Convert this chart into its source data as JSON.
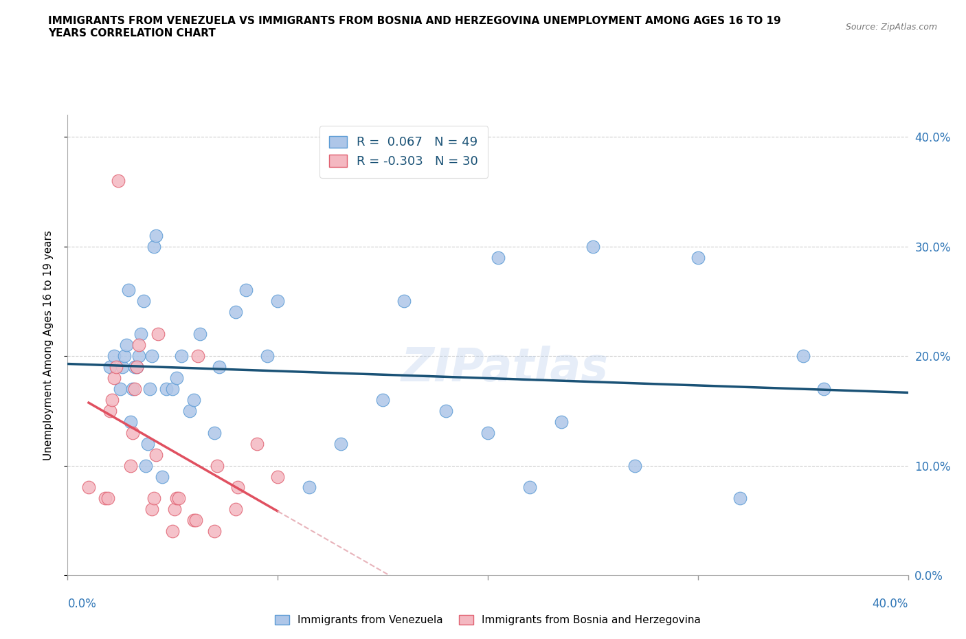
{
  "title": "IMMIGRANTS FROM VENEZUELA VS IMMIGRANTS FROM BOSNIA AND HERZEGOVINA UNEMPLOYMENT AMONG AGES 16 TO 19\nYEARS CORRELATION CHART",
  "source": "Source: ZipAtlas.com",
  "ylabel": "Unemployment Among Ages 16 to 19 years",
  "xlim": [
    0.0,
    0.4
  ],
  "ylim": [
    0.0,
    0.42
  ],
  "yticks": [
    0.0,
    0.1,
    0.2,
    0.3,
    0.4
  ],
  "xticks": [
    0.0,
    0.1,
    0.2,
    0.3,
    0.4
  ],
  "venezuela_color": "#aec6e8",
  "venezuela_edge": "#5b9bd5",
  "bosnia_color": "#f4b8c1",
  "bosnia_edge": "#e06070",
  "trend_venezuela_color": "#1a5276",
  "trend_bosnia_color": "#e05060",
  "trend_bosnia_dashed_color": "#e8b4bb",
  "R_venezuela": 0.067,
  "N_venezuela": 49,
  "R_bosnia": -0.303,
  "N_bosnia": 30,
  "watermark": "ZIPatlas",
  "legend_label_venezuela": "Immigrants from Venezuela",
  "legend_label_bosnia": "Immigrants from Bosnia and Herzegovina",
  "venezuela_x": [
    0.02,
    0.022,
    0.025,
    0.026,
    0.027,
    0.028,
    0.029,
    0.03,
    0.031,
    0.032,
    0.033,
    0.034,
    0.035,
    0.036,
    0.037,
    0.038,
    0.039,
    0.04,
    0.041,
    0.042,
    0.045,
    0.047,
    0.05,
    0.052,
    0.054,
    0.058,
    0.06,
    0.063,
    0.07,
    0.072,
    0.08,
    0.085,
    0.095,
    0.1,
    0.115,
    0.13,
    0.15,
    0.16,
    0.18,
    0.2,
    0.205,
    0.22,
    0.235,
    0.25,
    0.27,
    0.3,
    0.32,
    0.35,
    0.36
  ],
  "venezuela_y": [
    0.19,
    0.2,
    0.17,
    0.19,
    0.2,
    0.21,
    0.26,
    0.14,
    0.17,
    0.19,
    0.19,
    0.2,
    0.22,
    0.25,
    0.1,
    0.12,
    0.17,
    0.2,
    0.3,
    0.31,
    0.09,
    0.17,
    0.17,
    0.18,
    0.2,
    0.15,
    0.16,
    0.22,
    0.13,
    0.19,
    0.24,
    0.26,
    0.2,
    0.25,
    0.08,
    0.12,
    0.16,
    0.25,
    0.15,
    0.13,
    0.29,
    0.08,
    0.14,
    0.3,
    0.1,
    0.29,
    0.07,
    0.2,
    0.17
  ],
  "bosnia_x": [
    0.01,
    0.018,
    0.019,
    0.02,
    0.021,
    0.022,
    0.023,
    0.024,
    0.03,
    0.031,
    0.032,
    0.033,
    0.034,
    0.04,
    0.041,
    0.042,
    0.043,
    0.05,
    0.051,
    0.052,
    0.053,
    0.06,
    0.061,
    0.062,
    0.07,
    0.071,
    0.08,
    0.081,
    0.09,
    0.1
  ],
  "bosnia_y": [
    0.08,
    0.07,
    0.07,
    0.15,
    0.16,
    0.18,
    0.19,
    0.36,
    0.1,
    0.13,
    0.17,
    0.19,
    0.21,
    0.06,
    0.07,
    0.11,
    0.22,
    0.04,
    0.06,
    0.07,
    0.07,
    0.05,
    0.05,
    0.2,
    0.04,
    0.1,
    0.06,
    0.08,
    0.12,
    0.09
  ]
}
